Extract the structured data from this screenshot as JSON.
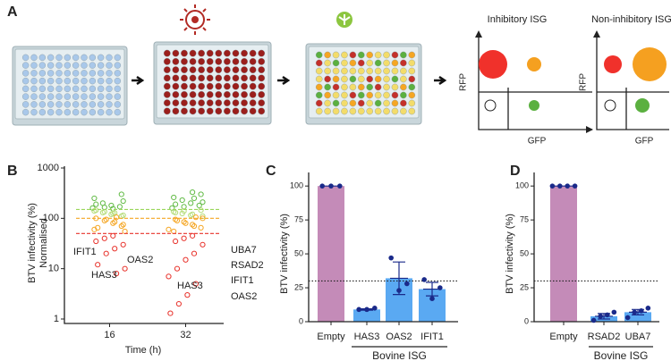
{
  "diagram": {
    "letters": [
      "A",
      "B",
      "C",
      "D"
    ],
    "plot_titles": [
      "Inhibitory ISG",
      "Non-inhibitory ISG"
    ],
    "y_axis": "RFP",
    "x_axis": "GFP"
  },
  "chart_data": [
    {
      "type": "scatter",
      "y_label": [
        "BTV infectivity (%)",
        "Normalised"
      ],
      "x_label": "Time (h)",
      "log_y": true,
      "ylim": [
        1,
        1000
      ],
      "yticks": [
        1,
        10,
        100,
        1000
      ],
      "xlim": [
        8,
        40
      ],
      "xticks": [
        16,
        32
      ],
      "reference_lines": [
        {
          "value": 150,
          "color": "#9ad65a"
        },
        {
          "value": 100,
          "color": "#f5a623"
        },
        {
          "value": 50,
          "color": "#e8322b"
        }
      ],
      "series": [
        {
          "color": "#62bb46",
          "x": 16,
          "values": [
            160,
            170,
            180,
            200,
            250,
            300,
            155,
            165,
            190,
            220
          ]
        },
        {
          "color": "#b4dc78",
          "x": 16,
          "values": [
            120,
            130,
            140,
            110,
            125,
            135,
            145,
            115,
            128
          ]
        },
        {
          "color": "#f5a623",
          "x": 16,
          "values": [
            60,
            70,
            80,
            90,
            100,
            75,
            85,
            95,
            65,
            55,
            105
          ]
        },
        {
          "color": "#e8322b",
          "x": 16,
          "values": [
            45,
            40,
            35,
            30,
            25,
            20,
            12,
            10,
            8
          ]
        },
        {
          "color": "#62bb46",
          "x": 32,
          "values": [
            160,
            180,
            200,
            230,
            260,
            300,
            330,
            170,
            190,
            210,
            250
          ]
        },
        {
          "color": "#b4dc78",
          "x": 32,
          "values": [
            115,
            125,
            135,
            145,
            120,
            140,
            130,
            110
          ]
        },
        {
          "color": "#f5a623",
          "x": 32,
          "values": [
            55,
            65,
            75,
            85,
            95,
            100,
            70,
            80,
            90,
            60,
            105
          ]
        },
        {
          "color": "#e8322b",
          "x": 32,
          "values": [
            45,
            40,
            35,
            30,
            20,
            15,
            10,
            7,
            5,
            3,
            2,
            1.3
          ]
        }
      ],
      "annotations": [
        "IFIT1",
        "OAS2",
        "HAS3",
        "UBA7",
        "RSAD2",
        "HAS3",
        "IFIT1",
        "OAS2"
      ]
    },
    {
      "type": "bar",
      "y_label": "BTV infectivity (%)",
      "ylim": [
        0,
        110
      ],
      "yticks": [
        0,
        25,
        50,
        75,
        100
      ],
      "categories": [
        "Empty",
        "HAS3",
        "OAS2",
        "IFIT1"
      ],
      "values": [
        100,
        9,
        32,
        24
      ],
      "errors": [
        0,
        0.5,
        12,
        5
      ],
      "colors": [
        "#c48bb8",
        "#5aa9f2",
        "#5aa9f2",
        "#5aa9f2"
      ],
      "point_color": "#1a2a8a",
      "points": [
        [
          100,
          100,
          100
        ],
        [
          9,
          9,
          10
        ],
        [
          47,
          23,
          28
        ],
        [
          31,
          17,
          25
        ]
      ],
      "reference_line": 30,
      "group_label": "Bovine ISG"
    },
    {
      "type": "bar",
      "y_label": "BTV infectivity (%)",
      "ylim": [
        0,
        110
      ],
      "yticks": [
        0,
        25,
        50,
        75,
        100
      ],
      "categories": [
        "Empty",
        "RSAD2",
        "UBA7"
      ],
      "values": [
        100,
        4,
        7
      ],
      "errors": [
        0,
        2,
        2
      ],
      "colors": [
        "#c48bb8",
        "#5aa9f2",
        "#5aa9f2"
      ],
      "point_color": "#1a2a8a",
      "points": [
        [
          100,
          100,
          100,
          100
        ],
        [
          1,
          4,
          5,
          7
        ],
        [
          3,
          7,
          8,
          10
        ]
      ],
      "reference_line": 30,
      "group_label": "Bovine ISG"
    }
  ]
}
